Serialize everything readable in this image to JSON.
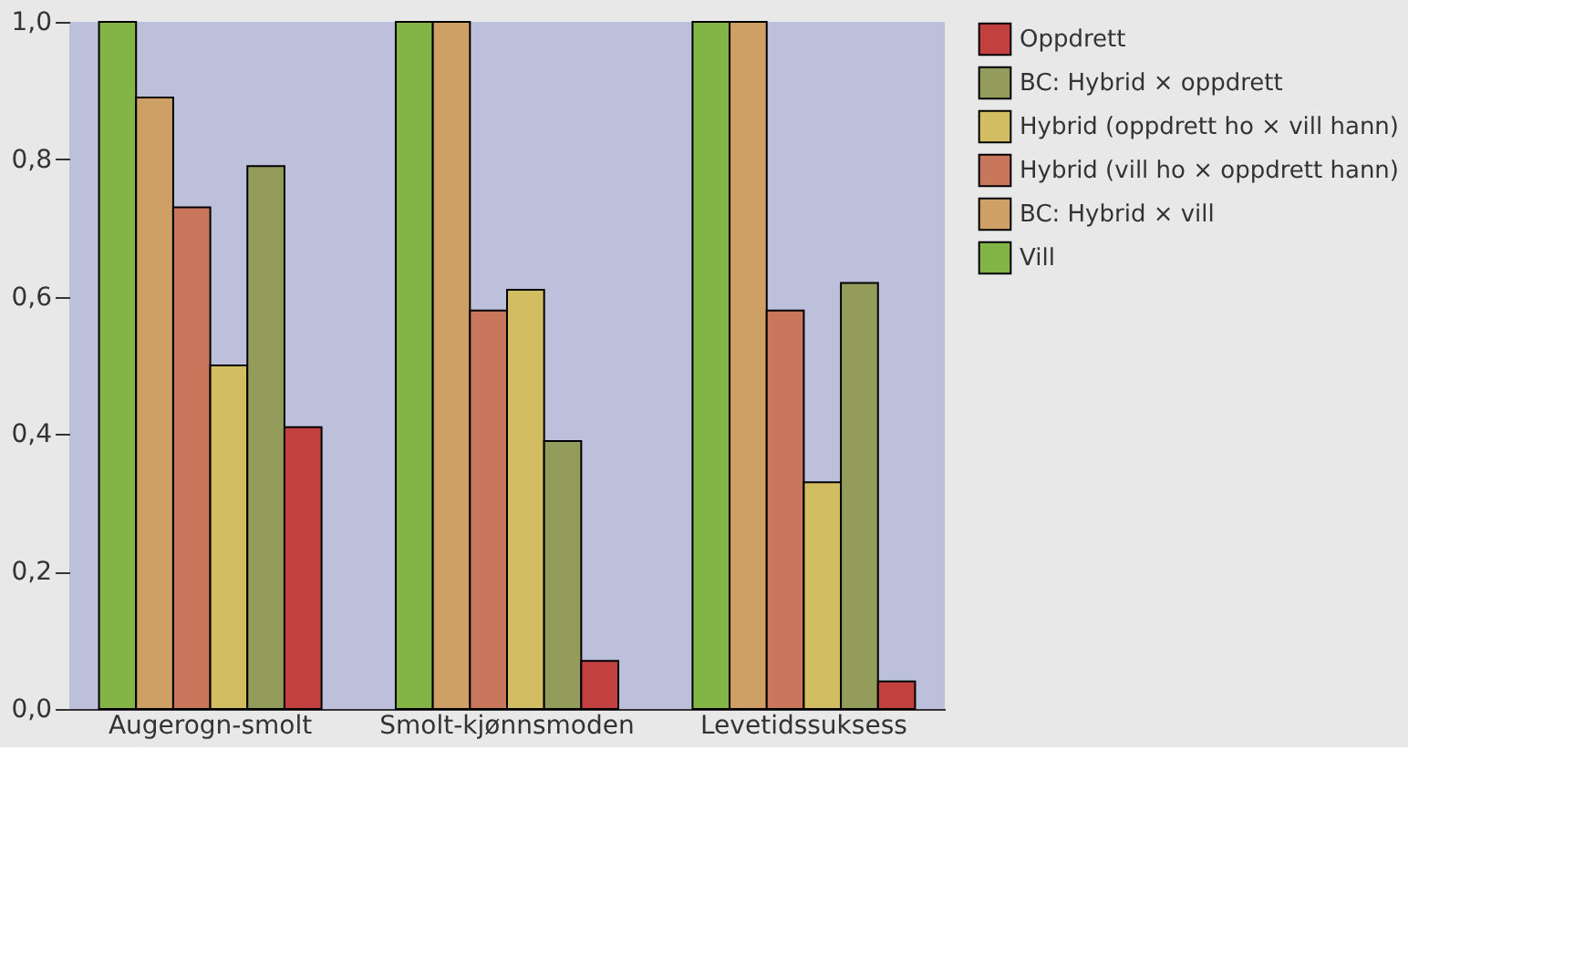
{
  "chart_data": {
    "type": "bar",
    "categories": [
      "Augerogn-smolt",
      "Smolt-kjønnsmoden",
      "Levetidssuksess"
    ],
    "series": [
      {
        "name": "Vill",
        "color": "#82b446",
        "values": [
          1.0,
          1.0,
          1.0
        ]
      },
      {
        "name": "BC: Hybrid × vill",
        "color": "#cfa066",
        "values": [
          0.89,
          1.0,
          1.0
        ]
      },
      {
        "name": "Hybrid (vill ho × oppdrett hann)",
        "color": "#c8765c",
        "values": [
          0.73,
          0.58,
          0.58
        ]
      },
      {
        "name": "Hybrid (oppdrett ho × vill hann)",
        "color": "#d3bd62",
        "values": [
          0.5,
          0.61,
          0.33
        ]
      },
      {
        "name": "BC: Hybrid × oppdrett",
        "color": "#949c5c",
        "values": [
          0.79,
          0.39,
          0.62
        ]
      },
      {
        "name": "Oppdrett",
        "color": "#c24040",
        "values": [
          0.41,
          0.07,
          0.04
        ]
      }
    ],
    "ylim": [
      0,
      1.0
    ],
    "yticks": [
      {
        "value": 0,
        "label": "0,0"
      },
      {
        "value": 0.2,
        "label": "0,2"
      },
      {
        "value": 0.4,
        "label": "0,4"
      },
      {
        "value": 0.6,
        "label": "0,6"
      },
      {
        "value": 0.8,
        "label": "0,8"
      },
      {
        "value": 1.0,
        "label": "1,0"
      }
    ],
    "grid": false,
    "legend": "top right"
  }
}
